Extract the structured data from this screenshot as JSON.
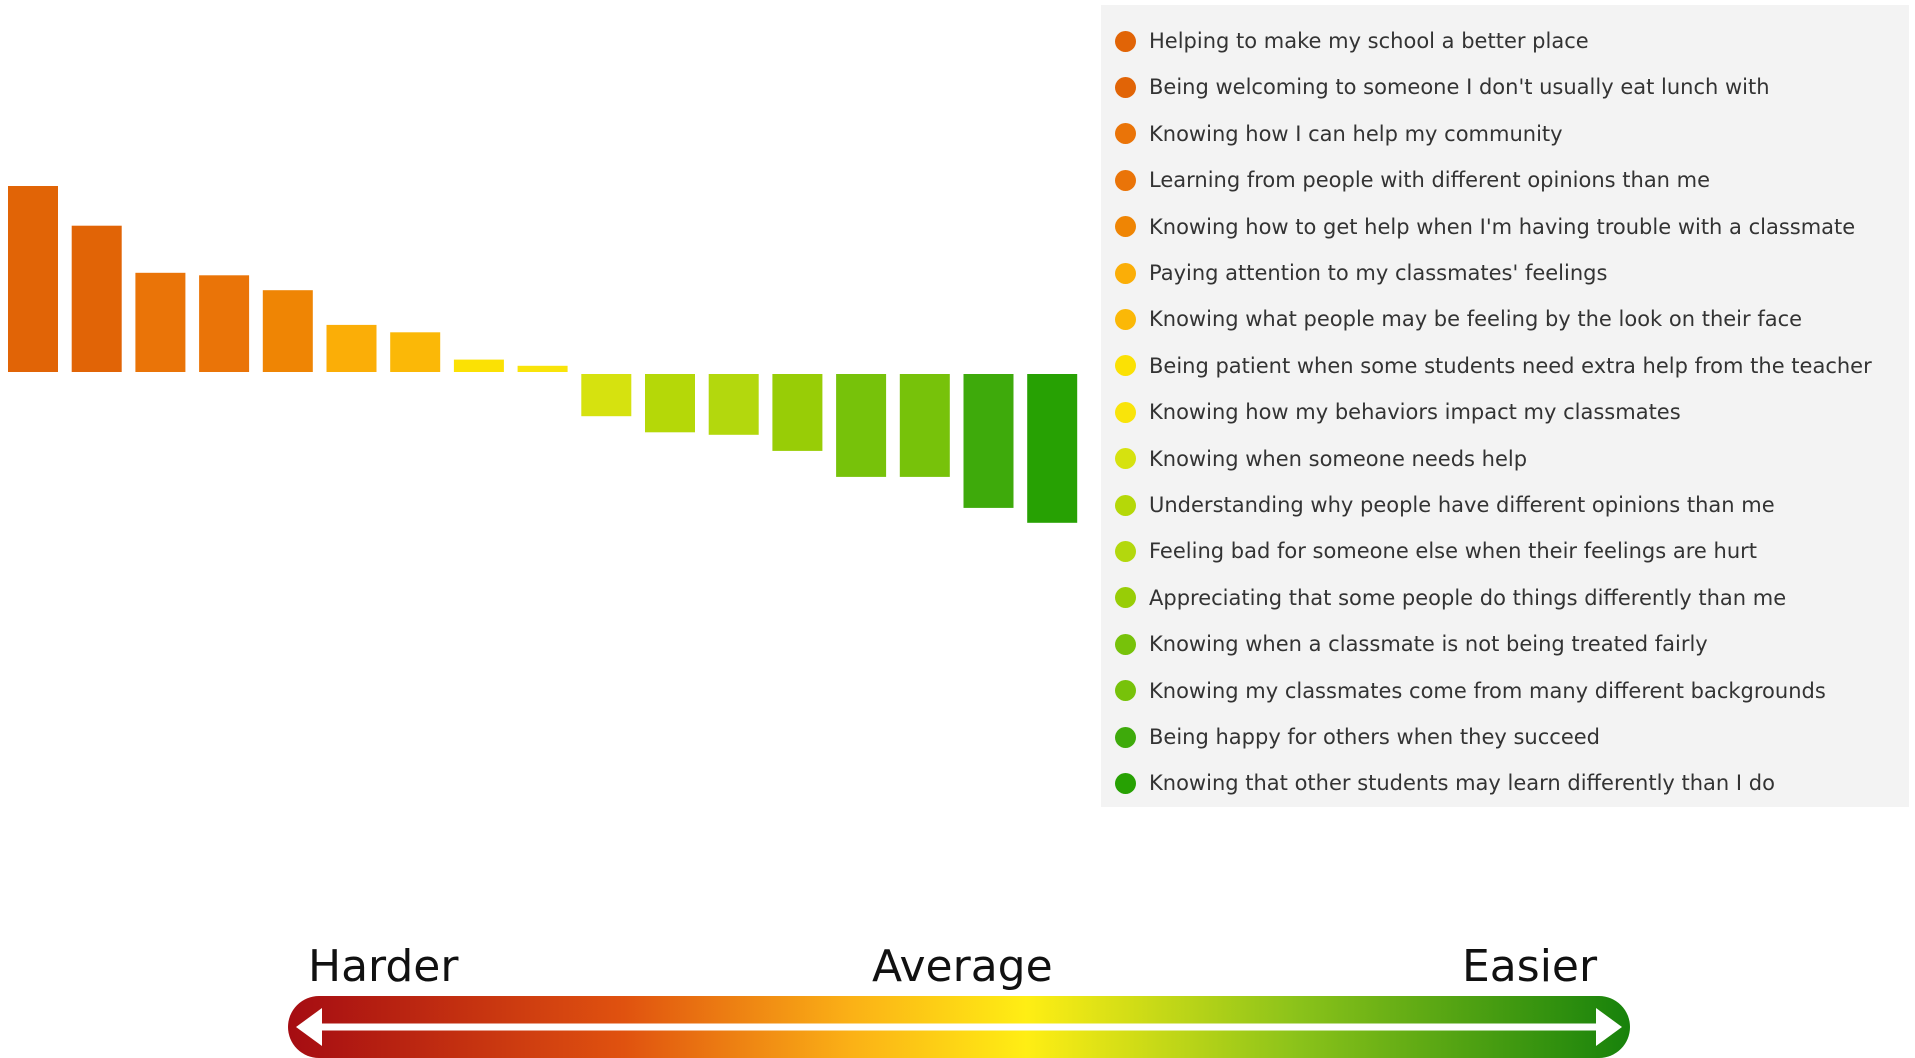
{
  "chart_data": {
    "type": "bar",
    "orientation": "diverging",
    "legend_position": "right",
    "grid": false,
    "ylim": [
      -125,
      155
    ],
    "categories": [
      "Helping to make my school a better place",
      "Being welcoming to someone I don't usually eat lunch with",
      "Knowing how I can help my community",
      "Learning from people with different opinions than me",
      "Knowing how to get help when I'm having trouble with a classmate",
      "Paying attention to my classmates' feelings",
      "Knowing what people may be feeling by the look on their face",
      "Being patient when some students need extra help from the teacher",
      "Knowing how my behaviors impact my classmates",
      "Knowing when someone needs help",
      "Understanding why people have different opinions than me",
      "Feeling bad for someone else when their feelings are hurt",
      "Appreciating that some people do things differently than me",
      "Knowing when a classmate is not being treated fairly",
      "Knowing my classmates come from many different backgrounds",
      "Being happy for others when they succeed",
      "Knowing that other students may learn differently than I do"
    ],
    "values": [
      150,
      118,
      80,
      78,
      66,
      38,
      32,
      10,
      5,
      -34,
      -47,
      -49,
      -62,
      -83,
      -83,
      -108,
      -120
    ],
    "colors": [
      "#e16406",
      "#e16406",
      "#ea7408",
      "#ea7408",
      "#ef8504",
      "#fbae07",
      "#fbb807",
      "#fbe104",
      "#f9e40a",
      "#d6e20f",
      "#b5d808",
      "#b3d80d",
      "#98cd06",
      "#77c20a",
      "#77c20a",
      "#3eaa0b",
      "#27a103"
    ]
  },
  "scale": {
    "left_label": "Harder",
    "center_label": "Average",
    "right_label": "Easier",
    "gradient_colors": [
      "#a50c12",
      "#e8720f",
      "#ffeb14",
      "#6db516",
      "#17820b"
    ]
  }
}
